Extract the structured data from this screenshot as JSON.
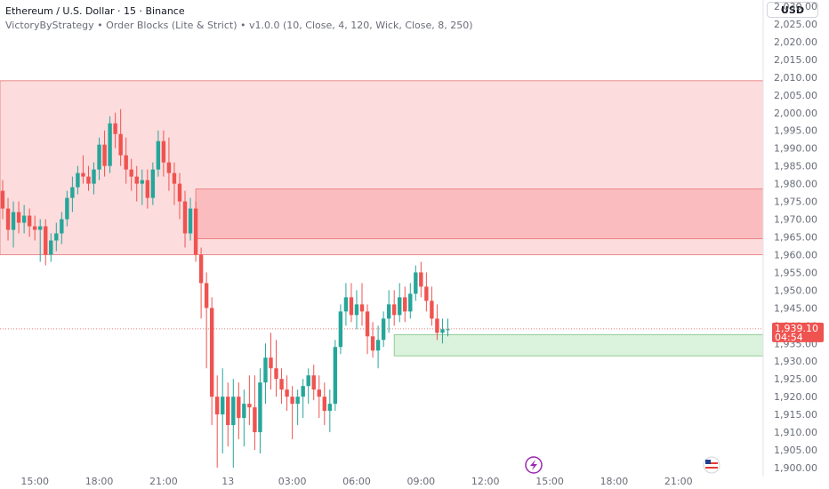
{
  "header": {
    "title": "Ethereum / U.S. Dollar · 15 · Binance",
    "indicator": "VictoryByStrategy • Order Blocks (Lite & Strict) • v1.0.0 (10, Close, 4, 120, Wick, Close, 8, 250)"
  },
  "toolbar": {
    "currency_label": "USD"
  },
  "colors": {
    "up": "#26a69a",
    "down": "#ef5350",
    "supply_zone": "#fddcdd",
    "supply_zone_strict": "#fbbcbf",
    "demand_zone": "#dbf2dc",
    "last_price_line": "#ef5350"
  },
  "icons": {
    "lightning": "lightning-icon",
    "flag": "us-flag-icon"
  },
  "chart_data": {
    "type": "candlestick",
    "ylim": [
      1897.5,
      2031
    ],
    "y_ticks": [
      "1,900.00",
      "1,905.00",
      "1,910.00",
      "1,915.00",
      "1,920.00",
      "1,925.00",
      "1,930.00",
      "1,935.00",
      "1,940.00",
      "1,945.00",
      "1,950.00",
      "1,955.00",
      "1,960.00",
      "1,965.00",
      "1,970.00",
      "1,975.00",
      "1,980.00",
      "1,985.00",
      "1,990.00",
      "1,995.00",
      "2,000.00",
      "2,005.00",
      "2,010.00",
      "2,015.00",
      "2,020.00",
      "2,025.00",
      "2,030.00"
    ],
    "x_ticks": [
      {
        "label": "15:00",
        "i": 6
      },
      {
        "label": "18:00",
        "i": 18
      },
      {
        "label": "21:00",
        "i": 30
      },
      {
        "label": "13",
        "i": 42
      },
      {
        "label": "03:00",
        "i": 54
      },
      {
        "label": "06:00",
        "i": 66
      },
      {
        "label": "09:00",
        "i": 78
      },
      {
        "label": "12:00",
        "i": 90
      },
      {
        "label": "15:00",
        "i": 102
      },
      {
        "label": "18:00",
        "i": 114
      },
      {
        "label": "21:00",
        "i": 126
      }
    ],
    "last_price": {
      "value": "1,939.10",
      "price": 1939.1,
      "countdown": "04:54"
    },
    "zones": [
      {
        "type": "supply",
        "from_i": -1,
        "top": 2009,
        "bottom": 1960
      },
      {
        "type": "supply_strict",
        "from_i": 36,
        "top": 1978.5,
        "bottom": 1964.5
      },
      {
        "type": "demand",
        "from_i": 73,
        "top": 1937.5,
        "bottom": 1931.5
      }
    ],
    "candles": [
      [
        1978,
        1981,
        1970,
        1973
      ],
      [
        1973,
        1976,
        1964,
        1967
      ],
      [
        1967,
        1975,
        1962,
        1972
      ],
      [
        1972,
        1975,
        1966,
        1969
      ],
      [
        1969,
        1974,
        1966,
        1971
      ],
      [
        1971,
        1973,
        1965,
        1968
      ],
      [
        1968,
        1971,
        1964,
        1967
      ],
      [
        1967,
        1970,
        1958,
        1968
      ],
      [
        1968,
        1970,
        1957,
        1960
      ],
      [
        1960,
        1966,
        1958,
        1964
      ],
      [
        1964,
        1969,
        1961,
        1966
      ],
      [
        1966,
        1972,
        1963,
        1970
      ],
      [
        1970,
        1978,
        1968,
        1976
      ],
      [
        1976,
        1982,
        1972,
        1979
      ],
      [
        1979,
        1985,
        1977,
        1983
      ],
      [
        1983,
        1988,
        1980,
        1982
      ],
      [
        1982,
        1985,
        1978,
        1980
      ],
      [
        1980,
        1986,
        1977,
        1984
      ],
      [
        1984,
        1993,
        1981,
        1991
      ],
      [
        1991,
        1995,
        1982,
        1985
      ],
      [
        1985,
        1999,
        1983,
        1997
      ],
      [
        1997,
        2000,
        1990,
        1994
      ],
      [
        1994,
        2001,
        1985,
        1988
      ],
      [
        1988,
        1993,
        1980,
        1984
      ],
      [
        1984,
        1987,
        1978,
        1982
      ],
      [
        1982,
        1985,
        1975,
        1980
      ],
      [
        1980,
        1984,
        1974,
        1981
      ],
      [
        1981,
        1984,
        1973,
        1976
      ],
      [
        1976,
        1986,
        1974,
        1984
      ],
      [
        1984,
        1995,
        1982,
        1992
      ],
      [
        1992,
        1995,
        1982,
        1986
      ],
      [
        1986,
        1993,
        1978,
        1983
      ],
      [
        1983,
        1986,
        1974,
        1980
      ],
      [
        1980,
        1983,
        1970,
        1975
      ],
      [
        1975,
        1978,
        1962,
        1966
      ],
      [
        1966,
        1976,
        1964,
        1973
      ],
      [
        1973,
        1975,
        1958,
        1960
      ],
      [
        1960,
        1962,
        1942,
        1952
      ],
      [
        1952,
        1955,
        1928,
        1945
      ],
      [
        1945,
        1948,
        1912,
        1920
      ],
      [
        1920,
        1926,
        1900,
        1915
      ],
      [
        1915,
        1928,
        1904,
        1920
      ],
      [
        1920,
        1924,
        1906,
        1912
      ],
      [
        1912,
        1925,
        1900,
        1920
      ],
      [
        1920,
        1924,
        1908,
        1914
      ],
      [
        1914,
        1922,
        1906,
        1918
      ],
      [
        1918,
        1926,
        1912,
        1917
      ],
      [
        1917,
        1926,
        1905,
        1910
      ],
      [
        1910,
        1928,
        1904,
        1924
      ],
      [
        1924,
        1935,
        1918,
        1931
      ],
      [
        1931,
        1938,
        1922,
        1928
      ],
      [
        1928,
        1936,
        1920,
        1925
      ],
      [
        1925,
        1928,
        1918,
        1922
      ],
      [
        1922,
        1926,
        1916,
        1920
      ],
      [
        1920,
        1923,
        1908,
        1918
      ],
      [
        1918,
        1922,
        1912,
        1920
      ],
      [
        1920,
        1925,
        1914,
        1923
      ],
      [
        1923,
        1928,
        1918,
        1926
      ],
      [
        1926,
        1929,
        1919,
        1922
      ],
      [
        1922,
        1926,
        1914,
        1920
      ],
      [
        1920,
        1924,
        1912,
        1916
      ],
      [
        1916,
        1922,
        1910,
        1918
      ],
      [
        1918,
        1936,
        1916,
        1934
      ],
      [
        1934,
        1946,
        1932,
        1944
      ],
      [
        1944,
        1952,
        1940,
        1948
      ],
      [
        1948,
        1952,
        1941,
        1943
      ],
      [
        1943,
        1950,
        1939,
        1946
      ],
      [
        1946,
        1952,
        1940,
        1944
      ],
      [
        1944,
        1946,
        1932,
        1937
      ],
      [
        1937,
        1941,
        1931,
        1933
      ],
      [
        1933,
        1940,
        1928,
        1936
      ],
      [
        1936,
        1944,
        1934,
        1942
      ],
      [
        1942,
        1950,
        1938,
        1946
      ],
      [
        1946,
        1950,
        1940,
        1943
      ],
      [
        1943,
        1952,
        1941,
        1948
      ],
      [
        1948,
        1951,
        1941,
        1944
      ],
      [
        1944,
        1952,
        1942,
        1949
      ],
      [
        1949,
        1957,
        1947,
        1955
      ],
      [
        1955,
        1958,
        1948,
        1951
      ],
      [
        1951,
        1955,
        1944,
        1947
      ],
      [
        1947,
        1951,
        1940,
        1942
      ],
      [
        1942,
        1946,
        1936,
        1938
      ],
      [
        1938,
        1942,
        1935,
        1939
      ],
      [
        1939,
        1942,
        1937,
        1939
      ]
    ]
  }
}
